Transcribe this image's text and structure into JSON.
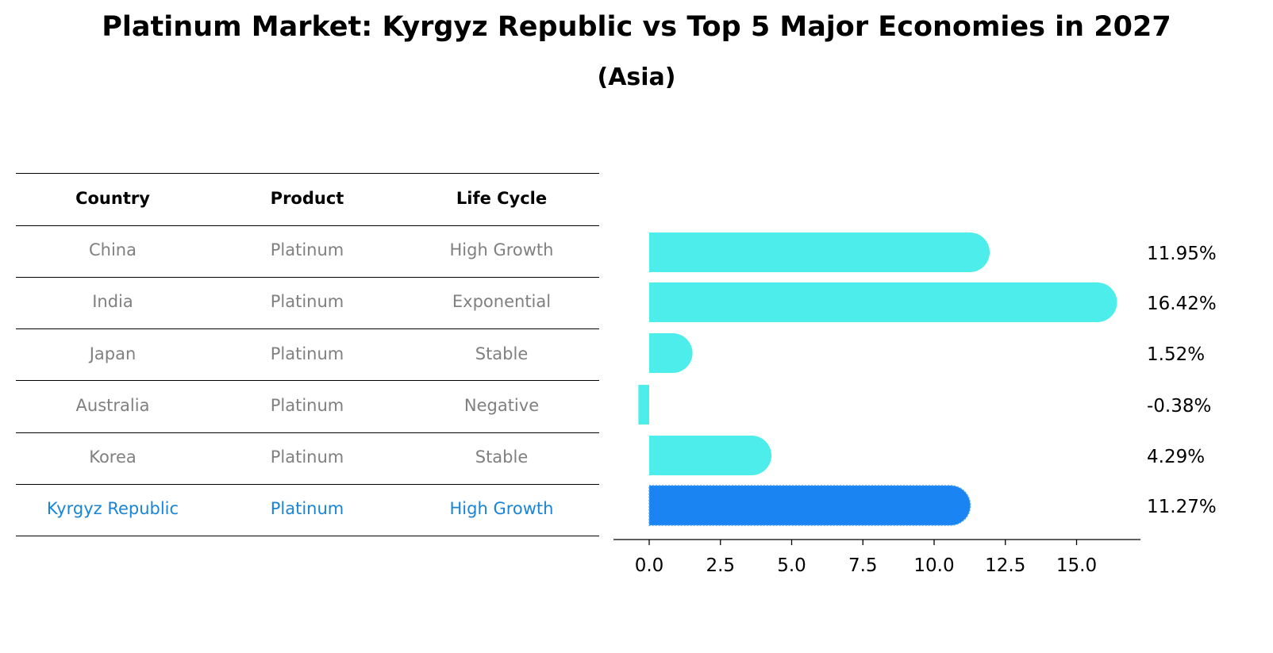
{
  "title": "Platinum Market: Kyrgyz Republic vs Top 5 Major Economies in 2027",
  "subtitle": "(Asia)",
  "colors": {
    "bar": "#4CEDEA",
    "highlight_bar": "#1A85F2",
    "highlight_text": "#1A85D6",
    "muted_text": "#808080",
    "text": "#000000"
  },
  "table": {
    "headers": [
      "Country",
      "Product",
      "Life Cycle"
    ],
    "rows": [
      [
        "China",
        "Platinum",
        "High Growth"
      ],
      [
        "India",
        "Platinum",
        "Exponential"
      ],
      [
        "Japan",
        "Platinum",
        "Stable"
      ],
      [
        "Australia",
        "Platinum",
        "Negative"
      ],
      [
        "Korea",
        "Platinum",
        "Stable"
      ],
      [
        "Kyrgyz Republic",
        "Platinum",
        "High Growth"
      ]
    ],
    "highlight_row": 5
  },
  "chart_data": {
    "type": "bar",
    "orientation": "horizontal",
    "categories": [
      "China",
      "India",
      "Japan",
      "Australia",
      "Korea",
      "Kyrgyz Republic"
    ],
    "values": [
      11.95,
      16.42,
      1.52,
      -0.38,
      4.29,
      11.27
    ],
    "value_labels": [
      "11.95%",
      "16.42%",
      "1.52%",
      "-0.38%",
      "4.29%",
      "11.27%"
    ],
    "highlight_index": 5,
    "xticks": [
      0.0,
      2.5,
      5.0,
      7.5,
      10.0,
      12.5,
      15.0
    ],
    "xtick_labels": [
      "0.0",
      "2.5",
      "5.0",
      "7.5",
      "10.0",
      "12.5",
      "15.0"
    ],
    "xlim": [
      -1.25,
      17.25
    ],
    "grid": false,
    "legend": "none"
  }
}
